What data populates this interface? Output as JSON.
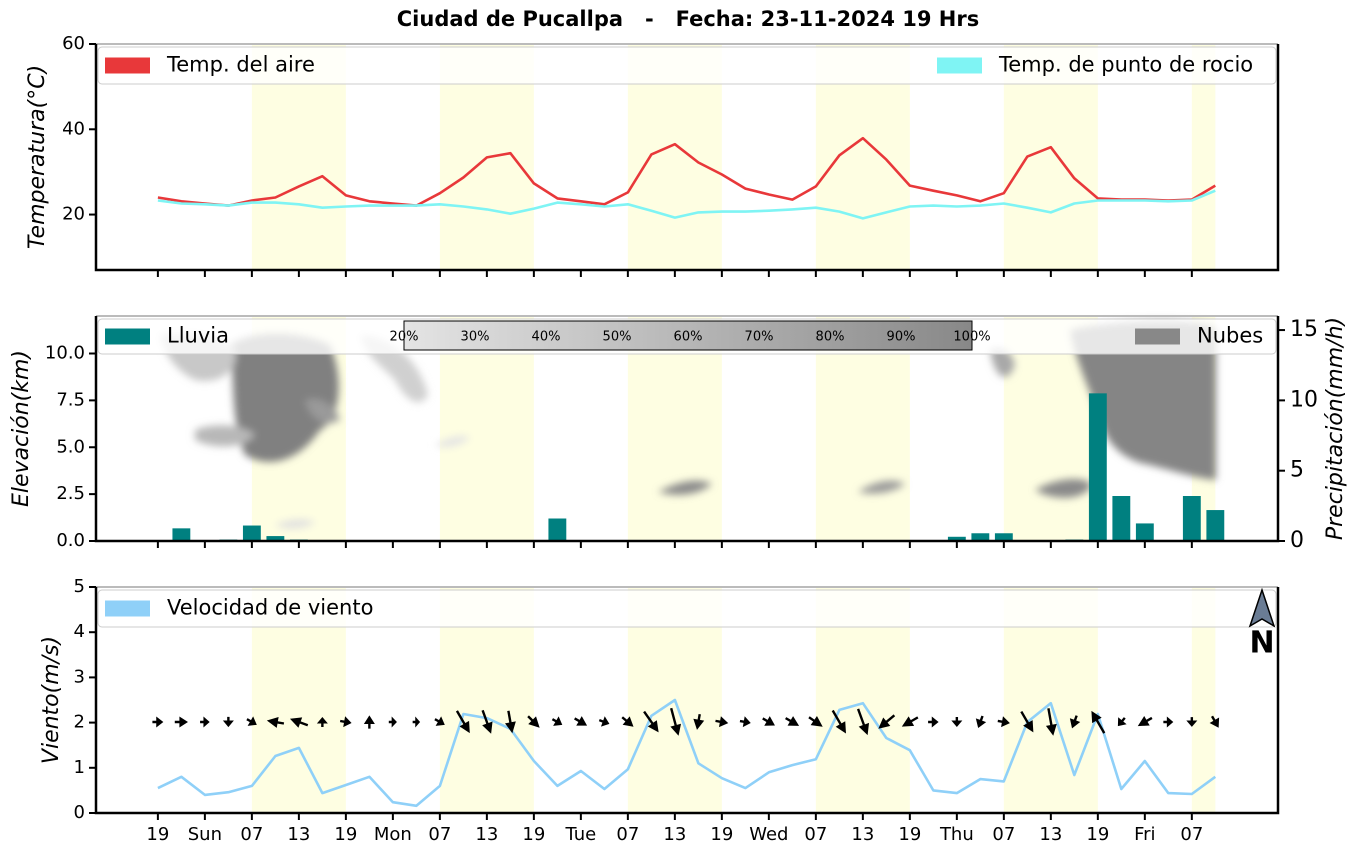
{
  "title": "Ciudad de Pucallpa   -   Fecha: 23-11-2024 19 Hrs",
  "north_label": "N",
  "chart_data": [
    {
      "type": "line",
      "ylabel": "Temperatura(°C)",
      "xlim": [
        -7.9,
        143
      ],
      "ylim": [
        7,
        60
      ],
      "yticks": [
        20,
        40,
        60
      ],
      "daytime": [
        [
          12,
          24
        ],
        [
          36,
          48
        ],
        [
          60,
          72
        ],
        [
          84,
          96
        ],
        [
          108,
          120
        ],
        [
          132,
          135
        ]
      ],
      "x": [
        0,
        3,
        6,
        9,
        12,
        15,
        18,
        21,
        24,
        27,
        30,
        33,
        36,
        39,
        42,
        45,
        48,
        51,
        54,
        57,
        60,
        63,
        66,
        69,
        72,
        75,
        78,
        81,
        84,
        87,
        90,
        93,
        96,
        99,
        102,
        105,
        108,
        111,
        114,
        117,
        120,
        123,
        126,
        129,
        132,
        135
      ],
      "series": [
        {
          "name": "Temp. del aire",
          "color": "#e8383a",
          "values": [
            24.0,
            23.1,
            22.6,
            22.1,
            23.3,
            24.0,
            26.6,
            29.0,
            24.5,
            23.1,
            22.6,
            22.1,
            25.0,
            28.7,
            33.4,
            34.4,
            27.3,
            23.8,
            23.1,
            22.4,
            25.2,
            34.1,
            36.5,
            32.2,
            29.4,
            26.1,
            24.7,
            23.5,
            26.6,
            33.9,
            37.9,
            32.9,
            26.8,
            25.6,
            24.5,
            23.1,
            25.0,
            33.6,
            35.8,
            28.5,
            23.8,
            23.5,
            23.5,
            23.3,
            23.5,
            26.8
          ]
        },
        {
          "name": "Temp. de punto de rocio",
          "color": "#7ff4f4",
          "values": [
            23.3,
            22.6,
            22.4,
            22.1,
            22.8,
            22.8,
            22.4,
            21.6,
            21.9,
            22.1,
            22.1,
            22.1,
            22.4,
            21.9,
            21.2,
            20.2,
            21.4,
            22.8,
            22.4,
            21.9,
            22.4,
            20.9,
            19.3,
            20.5,
            20.7,
            20.7,
            20.9,
            21.2,
            21.6,
            20.7,
            19.1,
            20.5,
            21.9,
            22.1,
            21.9,
            22.1,
            22.6,
            21.6,
            20.5,
            22.6,
            23.3,
            23.3,
            23.3,
            23.1,
            23.3,
            25.6
          ]
        }
      ]
    },
    {
      "type": "bar",
      "ylabel": "Elevación(km)",
      "y2label": "Precipitación(mm/h)",
      "xlim": [
        -7.9,
        143
      ],
      "ylim": [
        0,
        12
      ],
      "yticks": [
        {
          "value": 0,
          "label": "0.0"
        },
        2.5,
        {
          "value": 5,
          "label": "5.0"
        },
        7.5,
        {
          "value": 10,
          "label": "10.0"
        }
      ],
      "y2lim": [
        0,
        16
      ],
      "y2ticks": [
        0,
        5,
        10,
        15
      ],
      "daytime": [
        [
          12,
          24
        ],
        [
          36,
          48
        ],
        [
          60,
          72
        ],
        [
          84,
          96
        ],
        [
          108,
          120
        ],
        [
          132,
          135
        ]
      ],
      "x": [
        0,
        3,
        6,
        9,
        12,
        15,
        18,
        21,
        24,
        27,
        30,
        33,
        36,
        39,
        42,
        45,
        48,
        51,
        54,
        57,
        60,
        63,
        66,
        69,
        72,
        75,
        78,
        81,
        84,
        87,
        90,
        93,
        96,
        99,
        102,
        105,
        108,
        111,
        114,
        117,
        120,
        123,
        126,
        129,
        132,
        135
      ],
      "series": [
        {
          "name": "Lluvia",
          "color": "#008080",
          "axis": "y2",
          "values": [
            0,
            0.9,
            0,
            0.1,
            1.1,
            0.35,
            0.1,
            0,
            0,
            0,
            0,
            0,
            0,
            0,
            0,
            0,
            0,
            1.6,
            0.05,
            0,
            0,
            0,
            0,
            0,
            0,
            0,
            0,
            0,
            0,
            0,
            0,
            0,
            0,
            0,
            0.3,
            0.55,
            0.55,
            0,
            0,
            0.1,
            10.5,
            3.2,
            1.25,
            0,
            3.2,
            2.2
          ]
        }
      ],
      "clouds": {
        "name": "Nubes",
        "color": "#888888"
      },
      "colorbar": {
        "lim": [
          20,
          100
        ],
        "ticks": [
          {
            "value": 20,
            "label": "20%"
          },
          {
            "value": 30,
            "label": "30%"
          },
          {
            "value": 40,
            "label": "40%"
          },
          {
            "value": 50,
            "label": "50%"
          },
          {
            "value": 60,
            "label": "60%"
          },
          {
            "value": 70,
            "label": "70%"
          },
          {
            "value": 80,
            "label": "80%"
          },
          {
            "value": 90,
            "label": "90%"
          },
          {
            "value": 100,
            "label": "100%"
          }
        ]
      }
    },
    {
      "type": "wind",
      "ylabel": "Viento(m/s)",
      "xlim": [
        -7.9,
        143
      ],
      "ylim": [
        0,
        5
      ],
      "yticks": [
        0,
        1,
        2,
        3,
        4,
        5
      ],
      "daytime": [
        [
          12,
          24
        ],
        [
          36,
          48
        ],
        [
          60,
          72
        ],
        [
          84,
          96
        ],
        [
          108,
          120
        ],
        [
          132,
          135
        ]
      ],
      "x": [
        0,
        3,
        6,
        9,
        12,
        15,
        18,
        21,
        24,
        27,
        30,
        33,
        36,
        39,
        42,
        45,
        48,
        51,
        54,
        57,
        60,
        63,
        66,
        69,
        72,
        75,
        78,
        81,
        84,
        87,
        90,
        93,
        96,
        99,
        102,
        105,
        108,
        111,
        114,
        117,
        120,
        123,
        126,
        129,
        132,
        135
      ],
      "xticks": [
        {
          "value": 0,
          "label": "19"
        },
        {
          "value": 6,
          "label": "Sun"
        },
        {
          "value": 12,
          "label": "07"
        },
        {
          "value": 18,
          "label": "13"
        },
        {
          "value": 24,
          "label": "19"
        },
        {
          "value": 30,
          "label": "Mon"
        },
        {
          "value": 36,
          "label": "07"
        },
        {
          "value": 42,
          "label": "13"
        },
        {
          "value": 48,
          "label": "19"
        },
        {
          "value": 54,
          "label": "Tue"
        },
        {
          "value": 60,
          "label": "07"
        },
        {
          "value": 66,
          "label": "13"
        },
        {
          "value": 72,
          "label": "19"
        },
        {
          "value": 78,
          "label": "Wed"
        },
        {
          "value": 84,
          "label": "07"
        },
        {
          "value": 90,
          "label": "13"
        },
        {
          "value": 96,
          "label": "19"
        },
        {
          "value": 102,
          "label": "Thu"
        },
        {
          "value": 108,
          "label": "07"
        },
        {
          "value": 114,
          "label": "13"
        },
        {
          "value": 120,
          "label": "19"
        },
        {
          "value": 126,
          "label": "Fri"
        },
        {
          "value": 132,
          "label": "07"
        }
      ],
      "series": [
        {
          "name": "Velocidad de viento",
          "color": "#8fd0f8",
          "values": [
            0.55,
            0.8,
            0.4,
            0.46,
            0.6,
            1.26,
            1.44,
            0.44,
            0.62,
            0.8,
            0.24,
            0.16,
            0.6,
            2.19,
            2.1,
            1.86,
            1.15,
            0.6,
            0.93,
            0.53,
            0.97,
            2.15,
            2.5,
            1.1,
            0.77,
            0.55,
            0.9,
            1.06,
            1.19,
            2.28,
            2.43,
            1.66,
            1.39,
            0.5,
            0.44,
            0.75,
            0.7,
            2.01,
            2.43,
            0.84,
            2.19,
            0.53,
            1.15,
            0.44,
            0.42,
            0.8
          ],
          "direction_deg": [
            90,
            90,
            90,
            180,
            120,
            280,
            290,
            0,
            100,
            0,
            90,
            90,
            120,
            150,
            160,
            170,
            135,
            120,
            120,
            110,
            130,
            145,
            165,
            190,
            100,
            100,
            120,
            120,
            125,
            150,
            160,
            230,
            240,
            90,
            180,
            200,
            100,
            150,
            170,
            200,
            330,
            220,
            240,
            90,
            180,
            150
          ]
        }
      ]
    }
  ]
}
